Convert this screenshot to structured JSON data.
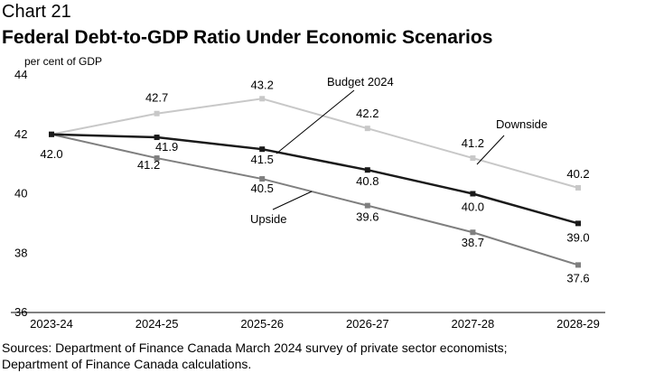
{
  "header": {
    "chart_number": "Chart 21",
    "title": "Federal Debt-to-GDP Ratio Under Economic Scenarios"
  },
  "source": {
    "line1": "Sources: Department of Finance Canada March 2024 survey of private sector economists;",
    "line2": "Department of Finance Canada calculations."
  },
  "chart_data": {
    "type": "line",
    "title": "Federal Debt-to-GDP Ratio Under Economic Scenarios",
    "ylabel": "per cent of GDP",
    "xlabel": "",
    "categories": [
      "2023-24",
      "2024-25",
      "2025-26",
      "2026-27",
      "2027-28",
      "2028-29"
    ],
    "ylim": [
      36,
      44
    ],
    "yticks": [
      36,
      38,
      40,
      42,
      44
    ],
    "grid": false,
    "series": [
      {
        "name": "Downside",
        "values": [
          42.0,
          42.7,
          43.2,
          42.2,
          41.2,
          40.2
        ],
        "color": "#c8c8c8",
        "labels": [
          "",
          "42.7",
          "43.2",
          "42.2",
          "41.2",
          "40.2"
        ]
      },
      {
        "name": "Budget 2024",
        "values": [
          42.0,
          41.9,
          41.5,
          40.8,
          40.0,
          39.0
        ],
        "color": "#1a1a1a",
        "labels": [
          "42.0",
          "41.9",
          "41.5",
          "40.8",
          "40.0",
          "39.0"
        ]
      },
      {
        "name": "Upside",
        "values": [
          42.0,
          41.2,
          40.5,
          39.6,
          38.7,
          37.6
        ],
        "color": "#7f7f7f",
        "labels": [
          "",
          "41.2",
          "40.5",
          "39.6",
          "38.7",
          "37.6"
        ]
      }
    ]
  }
}
